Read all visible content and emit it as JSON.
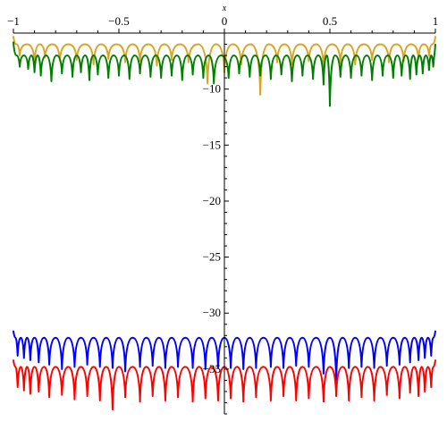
{
  "chart_data": {
    "type": "line",
    "title": "",
    "xlabel": "x",
    "ylabel": "",
    "xlim": [
      -1,
      1
    ],
    "ylim": [
      -39,
      -5
    ],
    "x_axis_position": "top (y = -5)",
    "y_axis_position": "center (x = 0)",
    "grid": false,
    "legend": "none",
    "x_ticks": [
      -1,
      -0.5,
      0,
      0.5,
      1
    ],
    "x_tick_labels": [
      "−1",
      "−0.5",
      "0",
      "0.5",
      "1"
    ],
    "y_ticks": [
      -10,
      -15,
      -20,
      -25,
      -30,
      -35
    ],
    "y_tick_labels": [
      "−10",
      "−15",
      "−20",
      "−25",
      "−30",
      "−35"
    ],
    "series": [
      {
        "color": "#DAA520",
        "baseline": -6.0,
        "x": [
          -1,
          -0.97,
          -0.9,
          -0.85,
          -0.78,
          -0.7,
          -0.62,
          -0.55,
          -0.47,
          -0.4,
          -0.32,
          -0.25,
          -0.17,
          -0.08,
          0,
          0.08,
          0.17,
          0.25,
          0.32,
          0.4,
          0.47,
          0.55,
          0.62,
          0.7,
          0.78,
          0.85,
          0.92,
          0.97,
          1
        ],
        "y": [
          -5.3,
          -7.0,
          -7.6,
          -7.2,
          -7.5,
          -7.4,
          -7.8,
          -7.3,
          -7.6,
          -7.5,
          -7.9,
          -7.4,
          -7.6,
          -9.5,
          -8.5,
          -7.8,
          -10.5,
          -7.6,
          -7.8,
          -7.5,
          -8.0,
          -7.7,
          -7.8,
          -7.4,
          -7.6,
          -7.5,
          -7.3,
          -7.0,
          -5.3
        ]
      },
      {
        "color": "#008000",
        "baseline": -7.0,
        "x": [
          -1,
          -0.97,
          -0.93,
          -0.9,
          -0.87,
          -0.82,
          -0.77,
          -0.72,
          -0.68,
          -0.64,
          -0.6,
          -0.55,
          -0.5,
          -0.45,
          -0.4,
          -0.35,
          -0.3,
          -0.25,
          -0.2,
          -0.15,
          -0.1,
          -0.05,
          0.02,
          0.07,
          0.12,
          0.17,
          0.22,
          0.27,
          0.32,
          0.37,
          0.42,
          0.47,
          0.5,
          0.55,
          0.6,
          0.65,
          0.7,
          0.75,
          0.8,
          0.84,
          0.88,
          0.91,
          0.94,
          0.97,
          0.99,
          1
        ],
        "y": [
          -5.8,
          -8.0,
          -8.2,
          -8.5,
          -8.8,
          -9.3,
          -8.6,
          -8.9,
          -8.5,
          -9.2,
          -8.7,
          -9.0,
          -8.8,
          -9.1,
          -8.6,
          -8.9,
          -9.0,
          -8.8,
          -9.2,
          -8.7,
          -9.0,
          -9.5,
          -9.0,
          -8.6,
          -8.9,
          -8.8,
          -9.1,
          -8.7,
          -9.3,
          -8.8,
          -9.1,
          -9.6,
          -11.5,
          -8.9,
          -9.0,
          -8.8,
          -9.2,
          -8.8,
          -9.0,
          -8.8,
          -9.1,
          -8.7,
          -8.6,
          -8.3,
          -8.0,
          -6.0
        ]
      },
      {
        "color": "#0000FF",
        "baseline": -32.2,
        "x": [
          -1,
          -0.98,
          -0.95,
          -0.92,
          -0.88,
          -0.83,
          -0.77,
          -0.71,
          -0.65,
          -0.59,
          -0.53,
          -0.47,
          -0.4,
          -0.34,
          -0.28,
          -0.22,
          -0.15,
          -0.09,
          -0.03,
          0.03,
          0.09,
          0.15,
          0.22,
          0.28,
          0.34,
          0.4,
          0.47,
          0.53,
          0.59,
          0.65,
          0.71,
          0.77,
          0.83,
          0.88,
          0.92,
          0.95,
          0.98,
          1
        ],
        "y": [
          -31.6,
          -33.8,
          -34.0,
          -34.2,
          -34.4,
          -34.6,
          -35.0,
          -34.8,
          -34.6,
          -34.8,
          -34.9,
          -35.2,
          -34.8,
          -34.7,
          -34.9,
          -34.8,
          -34.9,
          -35.0,
          -34.9,
          -34.9,
          -35.0,
          -34.9,
          -34.8,
          -34.9,
          -34.7,
          -34.8,
          -35.4,
          -36.0,
          -34.9,
          -34.8,
          -34.9,
          -34.7,
          -34.6,
          -34.4,
          -34.2,
          -34.0,
          -33.8,
          -31.6
        ]
      },
      {
        "color": "#FF0000",
        "baseline": -34.8,
        "x": [
          -1,
          -0.98,
          -0.95,
          -0.92,
          -0.88,
          -0.83,
          -0.77,
          -0.71,
          -0.65,
          -0.59,
          -0.53,
          -0.47,
          -0.4,
          -0.34,
          -0.28,
          -0.22,
          -0.15,
          -0.09,
          -0.03,
          0.03,
          0.09,
          0.15,
          0.22,
          0.28,
          0.34,
          0.4,
          0.47,
          0.53,
          0.59,
          0.65,
          0.71,
          0.77,
          0.83,
          0.88,
          0.92,
          0.95,
          0.98,
          1
        ],
        "y": [
          -34.2,
          -36.6,
          -36.9,
          -37.2,
          -37.0,
          -37.5,
          -37.3,
          -37.7,
          -37.4,
          -37.8,
          -38.6,
          -37.5,
          -37.9,
          -37.4,
          -37.8,
          -37.5,
          -37.9,
          -37.6,
          -37.8,
          -37.6,
          -37.9,
          -37.5,
          -37.8,
          -37.4,
          -37.8,
          -37.6,
          -37.9,
          -37.4,
          -37.8,
          -37.5,
          -37.8,
          -37.3,
          -37.6,
          -37.1,
          -37.4,
          -37.0,
          -36.6,
          -34.2
        ]
      }
    ]
  }
}
